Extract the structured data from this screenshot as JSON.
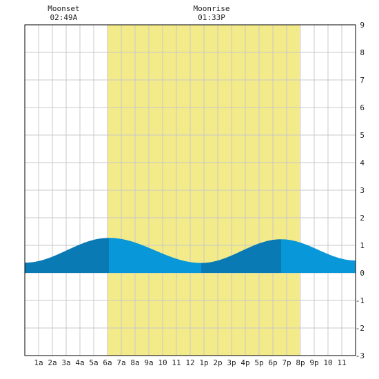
{
  "chart_data": {
    "type": "area",
    "ylim": [
      -3,
      9
    ],
    "xlim": [
      0,
      24
    ],
    "y_ticks": [
      "-3",
      "-2",
      "-1",
      "0",
      "1",
      "2",
      "3",
      "4",
      "5",
      "6",
      "7",
      "8",
      "9"
    ],
    "x_ticks": [
      "1a",
      "2a",
      "3a",
      "4a",
      "5a",
      "6a",
      "7a",
      "8a",
      "9a",
      "10",
      "11",
      "12",
      "1p",
      "2p",
      "3p",
      "4p",
      "5p",
      "6p",
      "7p",
      "8p",
      "9p",
      "10",
      "11"
    ],
    "grid": true,
    "daylight": [
      6.0,
      19.95
    ],
    "events": [
      {
        "label": "Moonset",
        "time": "02:49A",
        "hour": 2.82
      },
      {
        "label": "Moonrise",
        "time": "01:33P",
        "hour": 13.55
      }
    ],
    "tide_extrema": [
      {
        "hour": 0.0,
        "height": 0.37
      },
      {
        "hour": 6.1,
        "height": 1.27
      },
      {
        "hour": 12.8,
        "height": 0.36
      },
      {
        "hour": 18.6,
        "height": 1.22
      },
      {
        "hour": 24.0,
        "height": 0.45
      }
    ],
    "rising_segments": [
      [
        0.0,
        6.1
      ],
      [
        12.8,
        18.6
      ]
    ],
    "colors": {
      "daylight": "#f3ea8a",
      "tide_rising": "#0a7ab5",
      "tide_falling": "#0897d8",
      "grid": "#c8c8c8",
      "frame": "#000000",
      "text": "#222222"
    }
  }
}
